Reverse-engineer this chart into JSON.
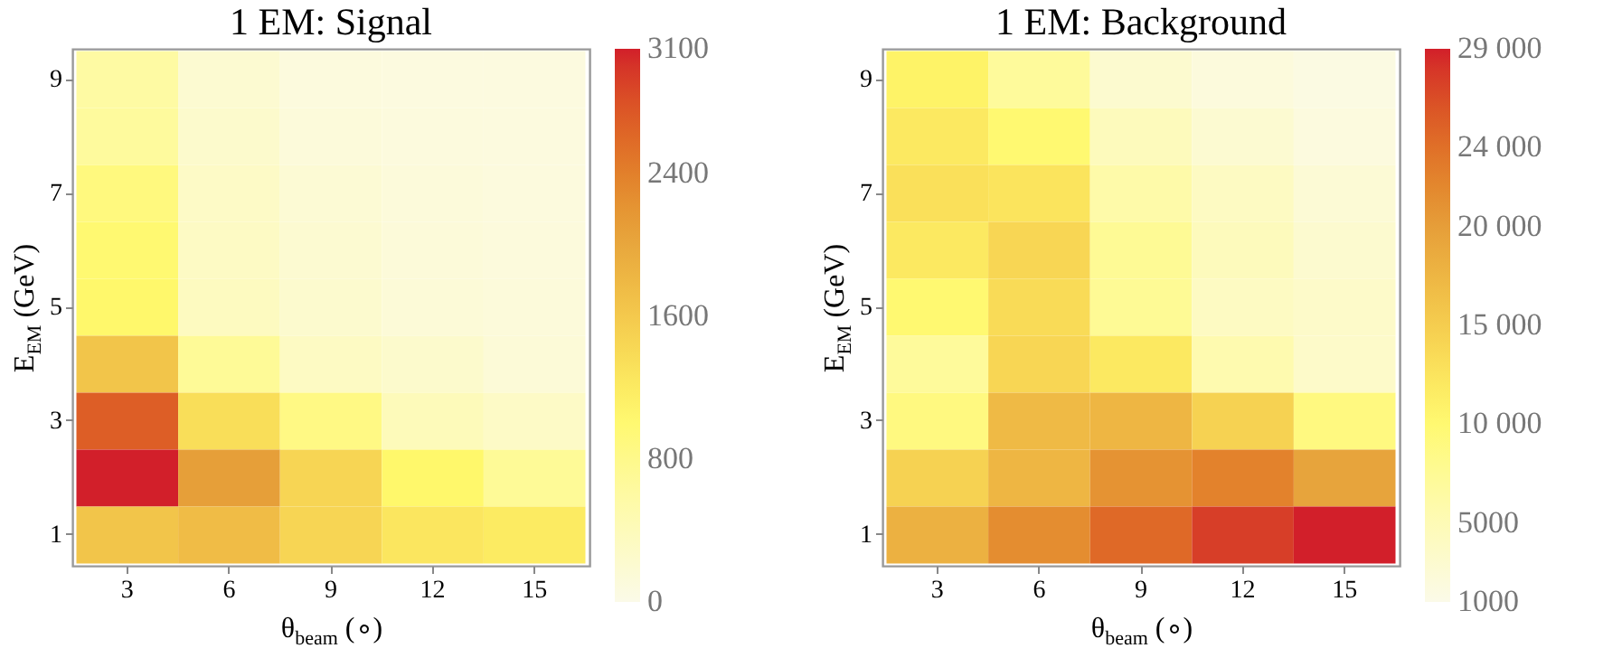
{
  "chart_data": [
    {
      "type": "heatmap",
      "title": "1 EM: Signal",
      "xlabel": "θ$_{beam}$ (∘)",
      "ylabel": "E$_{EM}$ (GeV)",
      "categories": [
        "3",
        "6",
        "9",
        "12",
        "15"
      ],
      "y_categories": [
        "9",
        null,
        "7",
        null,
        "5",
        null,
        "3",
        null,
        "1"
      ],
      "cells": [
        [
          600,
          200,
          100,
          80,
          80
        ],
        [
          650,
          250,
          120,
          100,
          90
        ],
        [
          900,
          300,
          180,
          120,
          100
        ],
        [
          1000,
          320,
          200,
          130,
          110
        ],
        [
          1050,
          350,
          230,
          150,
          120
        ],
        [
          1650,
          700,
          330,
          250,
          150
        ],
        [
          2700,
          1350,
          850,
          400,
          300
        ],
        [
          3100,
          2100,
          1450,
          1050,
          700
        ],
        [
          1650,
          1750,
          1450,
          1250,
          1200
        ]
      ],
      "clim": [
        0,
        3100
      ],
      "cticks": [
        0,
        800,
        1600,
        2400,
        3100
      ]
    },
    {
      "type": "heatmap",
      "title": "1 EM: Background",
      "xlabel": "θ$_{beam}$ (∘)",
      "ylabel": "E$_{EM}$ (GeV)",
      "categories": [
        "3",
        "6",
        "9",
        "12",
        "15"
      ],
      "y_categories": [
        "9",
        null,
        "7",
        null,
        "5",
        null,
        "3",
        null,
        "1"
      ],
      "cells": [
        [
          11000,
          7000,
          3000,
          2000,
          1500
        ],
        [
          12000,
          10000,
          4500,
          2800,
          1800
        ],
        [
          13000,
          12500,
          6000,
          4000,
          2500
        ],
        [
          12000,
          14000,
          7500,
          4500,
          3000
        ],
        [
          10000,
          13500,
          7500,
          4000,
          3500
        ],
        [
          7000,
          14000,
          12000,
          5500,
          3500
        ],
        [
          9000,
          17000,
          17500,
          14500,
          9000
        ],
        [
          14500,
          17500,
          21000,
          22500,
          19500
        ],
        [
          18000,
          21500,
          24500,
          27500,
          29000
        ]
      ],
      "clim": [
        1000,
        29000
      ],
      "cticks": [
        1000,
        5000,
        {
          "value": 10000,
          "label": "10 000"
        },
        {
          "value": 15000,
          "label": "15 000"
        },
        {
          "value": 20000,
          "label": "20 000"
        },
        {
          "value": 24000,
          "label": "24 000"
        },
        {
          "value": 29000,
          "label": "29 000"
        }
      ]
    }
  ]
}
